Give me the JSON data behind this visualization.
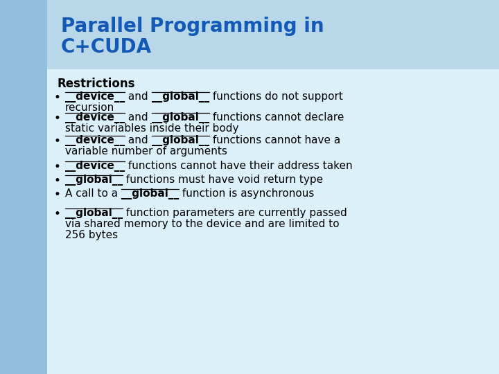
{
  "title_line1": "Parallel Programming in",
  "title_line2": "C+CUDA",
  "title_color": "#1459B5",
  "header_bg": "#B8D8EA",
  "body_bg": "#DCF0FA",
  "left_bar_color": "#92C0DC",
  "restrictions_title": "Restrictions",
  "font_size_title": 20,
  "font_size_restrictions": 12,
  "font_size_body": 11,
  "bullet_color": "#000000",
  "text_color": "#000000"
}
